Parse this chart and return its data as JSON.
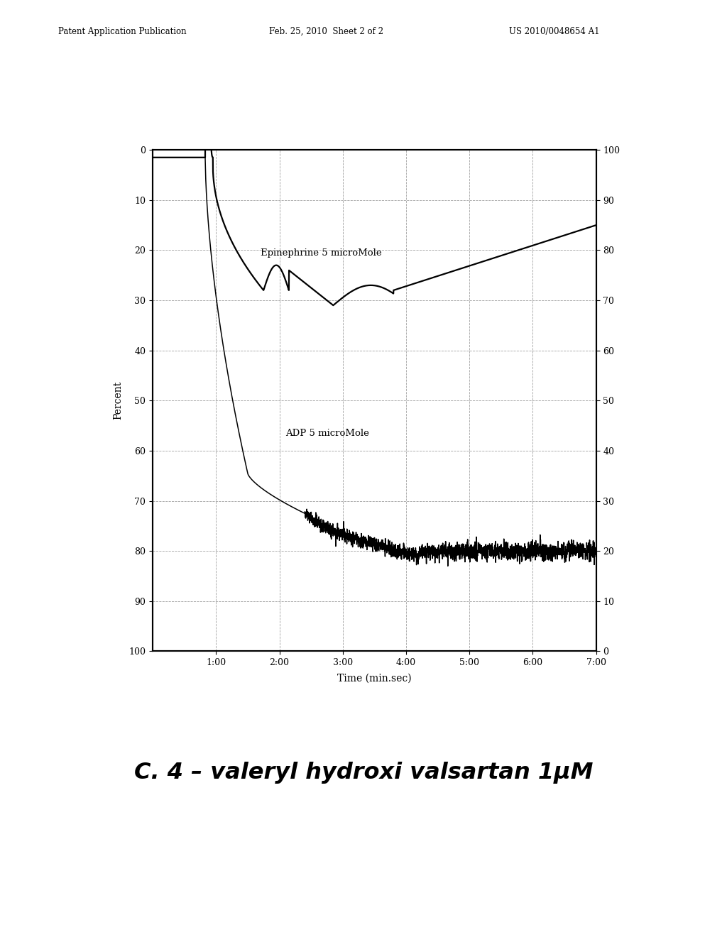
{
  "title_text": "C. 4 – valeryl hydroxi valsartan 1μM",
  "header_left": "Patent Application Publication",
  "header_center": "Feb. 25, 2010  Sheet 2 of 2",
  "header_right": "US 2010/0048654 A1",
  "xlabel": "Time (min.sec)",
  "ylabel_left": "Percent",
  "xtick_labels": [
    "1:00",
    "2:00",
    "3:00",
    "4:00",
    "5:00",
    "6:00",
    "7:00"
  ],
  "epi_label": "Epinephrine 5 microMole",
  "adp_label": "ADP 5 microMole",
  "bg_color": "#ffffff",
  "line_color": "#1a1a1a",
  "grid_color": "#888888"
}
